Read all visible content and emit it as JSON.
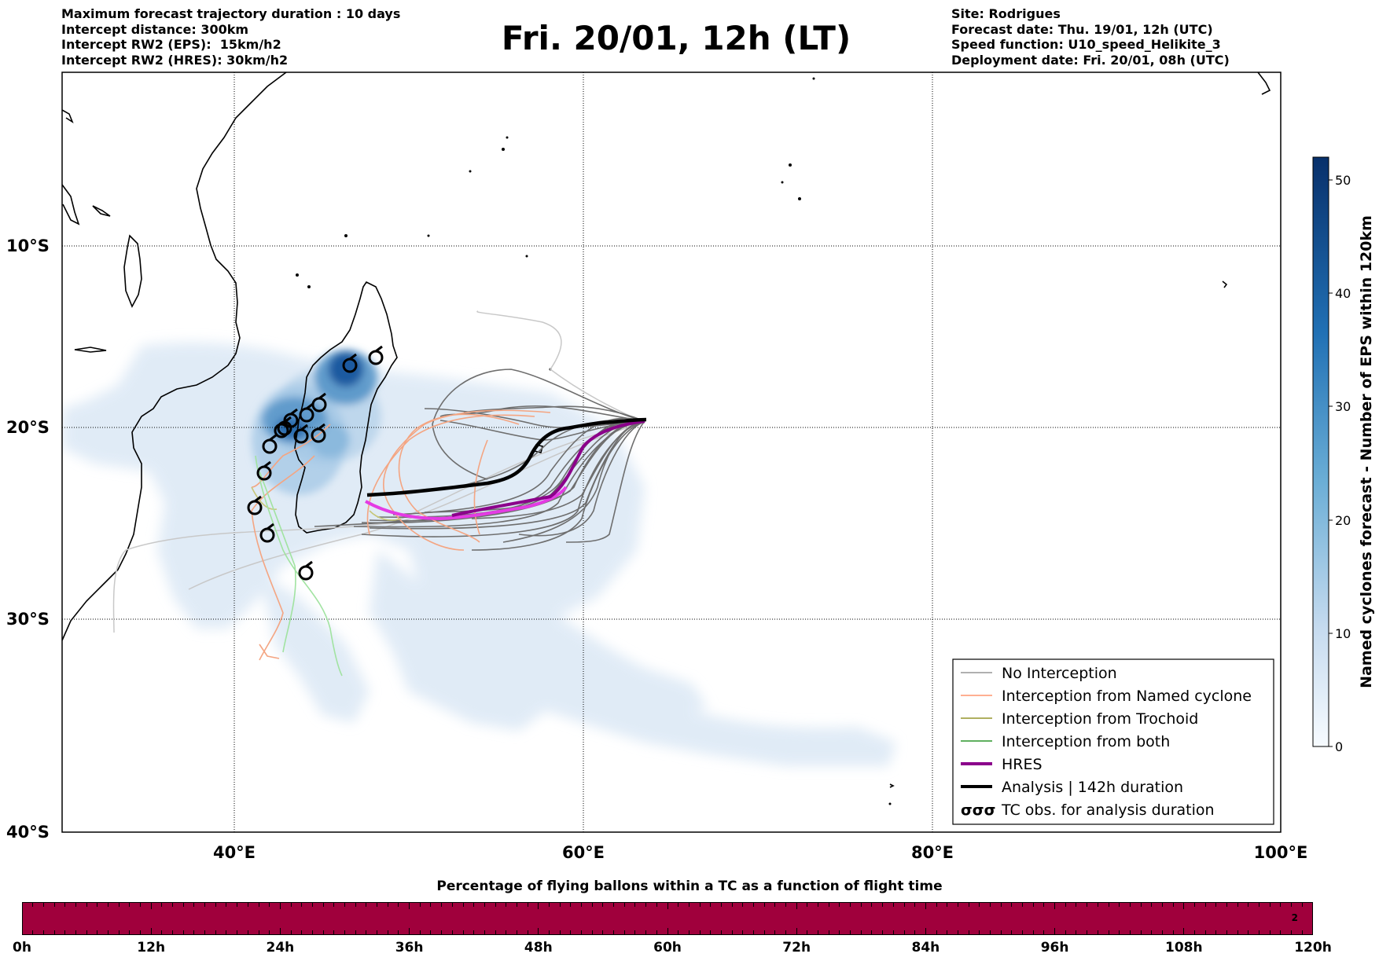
{
  "header_left": {
    "line1": "Maximum forecast trajectory duration : 10 days",
    "line2": "Intercept distance: 300km",
    "line3": "Intercept RW2 (EPS):  15km/h2",
    "line4": "Intercept RW2 (HRES): 30km/h2"
  },
  "title": "Fri. 20/01, 12h (LT)",
  "header_right": {
    "line1": "Site: Rodrigues",
    "line2": "Forecast date: Thu. 19/01, 12h (UTC)",
    "line3": "Speed function: U10_speed_Helikite_3",
    "line4": "Deployment date: Fri. 20/01, 08h (UTC)"
  },
  "map": {
    "lon_range": [
      30,
      100
    ],
    "lat_range": [
      -40,
      0
    ],
    "lon_ticks": [
      "40°E",
      "60°E",
      "80°E",
      "100°E"
    ],
    "lat_ticks": [
      "10°S",
      "20°S",
      "30°S",
      "40°S"
    ],
    "grid": true,
    "colors": {
      "no_interception": "#808080",
      "named_cyclone": "#ff7f50",
      "trochoid": "#808000",
      "both": "#008000",
      "hres": "#8b008b",
      "analysis": "#000000",
      "density": "#08306b"
    }
  },
  "legend": {
    "items": [
      {
        "label": "No Interception",
        "style": "thin-gray"
      },
      {
        "label": "Interception from Named cyclone",
        "style": "thin-coral"
      },
      {
        "label": "Interception from Trochoid",
        "style": "thin-olive"
      },
      {
        "label": "Interception from both",
        "style": "thin-green"
      },
      {
        "label": "HRES",
        "style": "thick-purple"
      },
      {
        "label": "Analysis | 142h duration",
        "style": "thick-black"
      },
      {
        "label": "TC obs. for analysis duration",
        "style": "cyclone-symbols"
      }
    ],
    "symbol_text": "σσσ"
  },
  "colorbar": {
    "label": "Named cyclones forecast - Number of EPS within 120km",
    "ticks": [
      "0",
      "10",
      "20",
      "30",
      "40",
      "50"
    ],
    "min": 0,
    "max": 52
  },
  "chart_data": {
    "type": "heatmap",
    "title": "Percentage of flying ballons within a TC as a function of flight time",
    "ticks": [
      "0h",
      "12h",
      "24h",
      "36h",
      "48h",
      "60h",
      "72h",
      "84h",
      "96h",
      "108h",
      "120h"
    ],
    "values": [
      "2"
    ]
  }
}
